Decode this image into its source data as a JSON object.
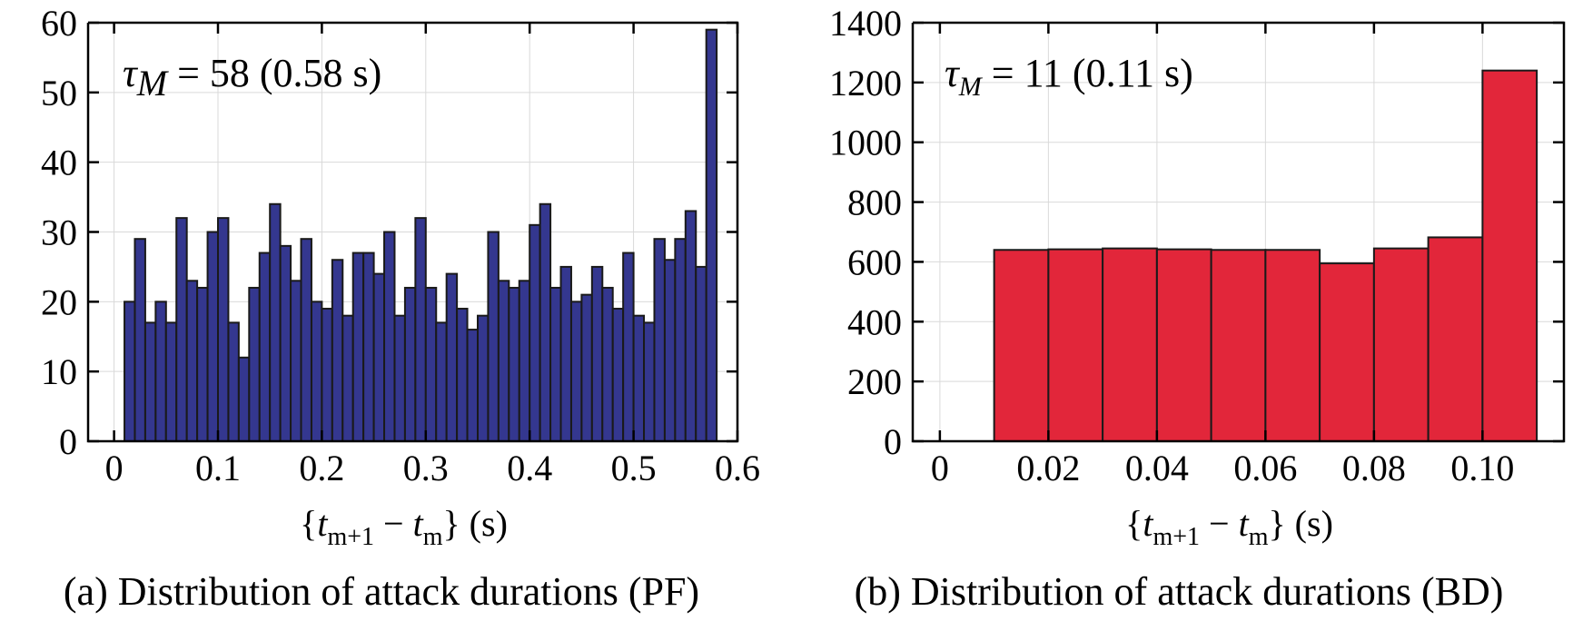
{
  "chart_data": [
    {
      "type": "bar",
      "caption": "(a) Distribution of attack durations (PF)",
      "annotation": {
        "symbol": "τ",
        "subscript": "M",
        "text": " = 58 (0.58 s)"
      },
      "xlabel": {
        "open": "{",
        "t1": "t",
        "sub1": "m+1",
        "minus": " − ",
        "t2": "t",
        "sub2": "m",
        "close": "} (s)"
      },
      "color": "#34378f",
      "xlim": [
        -0.025,
        0.6
      ],
      "ylim": [
        0,
        60
      ],
      "xticks": [
        0,
        0.1,
        0.2,
        0.3,
        0.4,
        0.5,
        0.6
      ],
      "xtick_labels": [
        "0",
        "0.1",
        "0.2",
        "0.3",
        "0.4",
        "0.5",
        "0.6"
      ],
      "yticks": [
        0,
        10,
        20,
        30,
        40,
        50,
        60
      ],
      "ytick_labels": [
        "0",
        "10",
        "20",
        "30",
        "40",
        "50",
        "60"
      ],
      "bin_start": 0.01,
      "bin_width": 0.01,
      "values": [
        20,
        29,
        17,
        20,
        17,
        32,
        23,
        22,
        30,
        32,
        17,
        12,
        22,
        27,
        34,
        28,
        23,
        29,
        20,
        19,
        26,
        18,
        27,
        27,
        24,
        30,
        18,
        22,
        32,
        22,
        17,
        24,
        19,
        16,
        18,
        30,
        23,
        22,
        23,
        31,
        34,
        22,
        25,
        20,
        21,
        25,
        22,
        19,
        27,
        18,
        17,
        29,
        26,
        29,
        33,
        25,
        59
      ]
    },
    {
      "type": "bar",
      "caption": "(b) Distribution of attack durations (BD)",
      "annotation": {
        "symbol": "τ",
        "subscript": "M",
        "text": " = 11 (0.11 s)"
      },
      "xlabel": {
        "open": "{",
        "t1": "t",
        "sub1": "m+1",
        "minus": " − ",
        "t2": "t",
        "sub2": "m",
        "close": "} (s)"
      },
      "color": "#e2263a",
      "xlim": [
        -0.005,
        0.115
      ],
      "ylim": [
        0,
        1400
      ],
      "xticks": [
        0,
        0.02,
        0.04,
        0.06,
        0.08,
        0.1
      ],
      "xtick_labels": [
        "0",
        "0.02",
        "0.04",
        "0.06",
        "0.08",
        "0.10"
      ],
      "yticks": [
        0,
        200,
        400,
        600,
        800,
        1000,
        1200,
        1400
      ],
      "ytick_labels": [
        "0",
        "200",
        "400",
        "600",
        "800",
        "1000",
        "1200",
        "1400"
      ],
      "bin_start": 0.01,
      "bin_width": 0.01,
      "values": [
        640,
        642,
        645,
        642,
        640,
        640,
        595,
        645,
        682,
        1240
      ]
    }
  ]
}
